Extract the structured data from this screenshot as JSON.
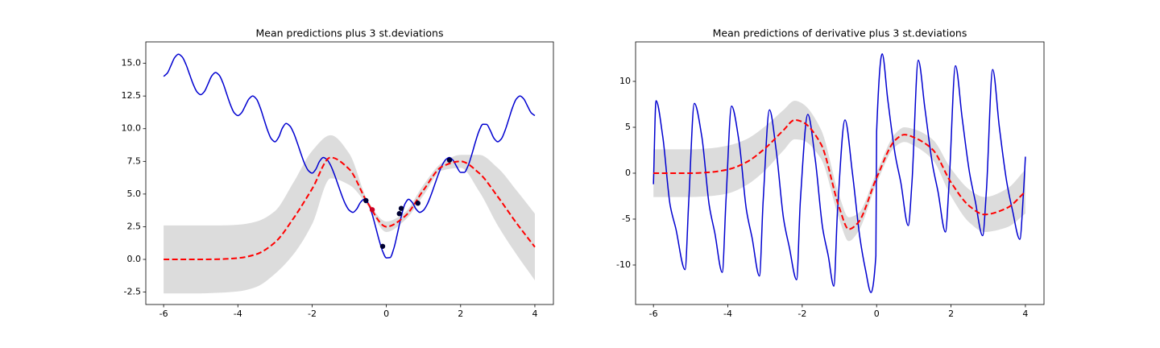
{
  "chart_data": [
    {
      "type": "line",
      "title": "Mean predictions plus 3 st.deviations",
      "xlim": [
        -6.48,
        4.5
      ],
      "ylim": [
        -3.45,
        16.64
      ],
      "xticks": [
        -6,
        -4,
        -2,
        0,
        2,
        4
      ],
      "yticks": [
        -2.5,
        {
          "value": 0,
          "label": "0.0"
        },
        2.5,
        {
          "value": 5,
          "label": "5.0"
        },
        7.5,
        {
          "value": 10,
          "label": "10.0"
        },
        12.5,
        {
          "value": 15,
          "label": "15.0"
        }
      ],
      "band": {
        "color": "#dcdcdc",
        "x": [
          -6,
          -5.5,
          -5,
          -4.5,
          -4,
          -3.5,
          -3,
          -2.5,
          -2,
          -1.5,
          -1,
          -0.5,
          0,
          0.5,
          1,
          1.5,
          2,
          2.5,
          3,
          3.5,
          4
        ],
        "lower": [
          -2.6,
          -2.6,
          -2.6,
          -2.55,
          -2.45,
          -2.1,
          -1.1,
          0.4,
          2.7,
          6.2,
          5.7,
          4.1,
          2.1,
          3.0,
          4.9,
          6.8,
          7.0,
          5.2,
          2.6,
          0.4,
          -1.6
        ],
        "upper": [
          2.6,
          2.6,
          2.6,
          2.6,
          2.65,
          2.9,
          3.7,
          5.9,
          8.3,
          9.5,
          8.1,
          4.5,
          2.9,
          3.6,
          5.7,
          7.4,
          8.0,
          8.0,
          7.0,
          5.3,
          3.5
        ]
      },
      "series": [
        {
          "color": "#0000d0",
          "x": [
            -6.0,
            -5.9,
            -5.8,
            -5.7,
            -5.6,
            -5.5,
            -5.4,
            -5.3,
            -5.2,
            -5.1,
            -5.0,
            -4.9,
            -4.8,
            -4.7,
            -4.6,
            -4.5,
            -4.4,
            -4.3,
            -4.2,
            -4.1,
            -4.0,
            -3.9,
            -3.8,
            -3.7,
            -3.6,
            -3.5,
            -3.4,
            -3.3,
            -3.2,
            -3.1,
            -3.0,
            -2.9,
            -2.8,
            -2.7,
            -2.6,
            -2.5,
            -2.4,
            -2.3,
            -2.2,
            -2.1,
            -2.0,
            -1.9,
            -1.8,
            -1.7,
            -1.6,
            -1.5,
            -1.4,
            -1.3,
            -1.2,
            -1.1,
            -1.0,
            -0.9,
            -0.8,
            -0.7,
            -0.6,
            -0.5,
            -0.4,
            -0.3,
            -0.2,
            -0.1,
            0.0,
            0.1,
            0.2,
            0.3,
            0.4,
            0.5,
            0.6,
            0.7,
            0.8,
            0.9,
            1.0,
            1.1,
            1.2,
            1.3,
            1.4,
            1.5,
            1.6,
            1.7,
            1.8,
            1.9,
            2.0,
            2.1,
            2.2,
            2.3,
            2.4,
            2.5,
            2.6,
            2.7,
            2.8,
            2.9,
            3.0,
            3.1,
            3.2,
            3.3,
            3.4,
            3.5,
            3.6,
            3.7,
            3.8,
            3.9,
            4.0
          ],
          "values": [
            14.0,
            14.25,
            14.85,
            15.45,
            15.7,
            15.49,
            14.93,
            14.15,
            13.38,
            12.81,
            12.6,
            12.85,
            13.45,
            14.05,
            14.3,
            14.08,
            13.48,
            12.65,
            11.83,
            11.22,
            11.0,
            11.22,
            11.75,
            12.28,
            12.5,
            12.27,
            11.63,
            10.75,
            9.88,
            9.23,
            9.0,
            9.35,
            10.05,
            10.4,
            10.21,
            9.69,
            8.92,
            8.08,
            7.31,
            6.79,
            6.6,
            6.9,
            7.5,
            7.8,
            7.64,
            7.19,
            6.5,
            5.7,
            4.9,
            4.21,
            3.76,
            3.6,
            3.85,
            4.35,
            4.6,
            4.34,
            3.62,
            2.6,
            1.52,
            0.62,
            0.12,
            0.14,
            0.83,
            2.01,
            3.27,
            4.24,
            4.6,
            4.35,
            3.85,
            3.6,
            3.76,
            4.21,
            4.9,
            5.7,
            6.5,
            7.19,
            7.64,
            7.8,
            7.57,
            7.07,
            6.66,
            6.66,
            7.15,
            8.01,
            8.99,
            9.85,
            10.34,
            10.33,
            9.86,
            9.26,
            9.0,
            9.23,
            9.88,
            10.75,
            11.63,
            12.27,
            12.5,
            12.28,
            11.75,
            11.22,
            11.0
          ]
        },
        {
          "color": "#ff0000",
          "dashed": true,
          "x": [
            -6,
            -5.5,
            -5,
            -4.5,
            -4,
            -3.5,
            -3,
            -2.5,
            -2,
            -1.5,
            -1,
            -0.5,
            0,
            0.5,
            1,
            1.5,
            2,
            2.5,
            3,
            3.5,
            4
          ],
          "values": [
            0,
            0,
            0,
            0.02,
            0.1,
            0.4,
            1.3,
            3.15,
            5.4,
            7.8,
            6.9,
            4.3,
            2.5,
            3.3,
            5.3,
            7.1,
            7.5,
            6.6,
            4.8,
            2.8,
            0.95
          ]
        }
      ],
      "points": [
        {
          "color": "#000033",
          "x": [
            -0.55,
            -0.1,
            0.35,
            0.4,
            0.85,
            1.7
          ],
          "values": [
            4.5,
            1.0,
            3.5,
            3.9,
            4.3,
            7.6
          ]
        },
        {
          "color": "#cc0022",
          "x": [
            -0.38
          ],
          "values": [
            3.8
          ]
        }
      ]
    },
    {
      "type": "line",
      "title": "Mean predictions of derivative plus 3 st.deviations",
      "xlim": [
        -6.48,
        4.5
      ],
      "ylim": [
        -14.3,
        14.3
      ],
      "xticks": [
        -6,
        -4,
        -2,
        0,
        2,
        4
      ],
      "yticks": [
        -10,
        -5,
        0,
        5,
        10
      ],
      "band": {
        "color": "#dcdcdc",
        "x": [
          -6,
          -5,
          -4.5,
          -4,
          -3.5,
          -3,
          -2.5,
          -2.2,
          -2,
          -1.5,
          -1,
          -0.75,
          -0.5,
          0,
          0.5,
          0.75,
          1,
          1.5,
          2,
          2.5,
          2.9,
          3.5,
          4
        ],
        "lower": [
          -2.6,
          -2.6,
          -2.5,
          -2.2,
          -1.3,
          0.3,
          2.5,
          3.7,
          3.6,
          1.6,
          -5.1,
          -7.4,
          -6.4,
          -1.1,
          2.9,
          3.4,
          3.0,
          1.5,
          -2.5,
          -5.4,
          -6.4,
          -5.9,
          -4.4
        ],
        "upper": [
          2.6,
          2.6,
          2.7,
          3.0,
          3.7,
          5.1,
          6.9,
          7.9,
          7.6,
          4.8,
          -2.5,
          -4.8,
          -4.4,
          0.1,
          4.3,
          5.0,
          4.8,
          3.7,
          0.5,
          -1.8,
          -2.6,
          -1.7,
          0.4
        ]
      },
      "series": [
        {
          "color": "#0000d0",
          "x": [
            -6.0,
            -5.93,
            -5.75,
            -5.55,
            -5.4,
            -5.15,
            -5.05,
            -4.9,
            -4.7,
            -4.5,
            -4.35,
            -4.15,
            -4.05,
            -3.9,
            -3.7,
            -3.5,
            -3.35,
            -3.15,
            -3.05,
            -2.88,
            -2.7,
            -2.5,
            -2.35,
            -2.15,
            -2.05,
            -1.85,
            -1.65,
            -1.45,
            -1.3,
            -1.15,
            -1.05,
            -0.85,
            -0.65,
            -0.45,
            -0.3,
            -0.15,
            -0.02,
            0.0,
            0.15,
            0.3,
            0.5,
            0.65,
            0.85,
            0.95,
            1.12,
            1.3,
            1.5,
            1.65,
            1.85,
            1.95,
            2.12,
            2.3,
            2.5,
            2.65,
            2.85,
            2.95,
            3.12,
            3.3,
            3.5,
            3.65,
            3.85,
            3.95,
            4.0
          ],
          "values": [
            -1.2,
            7.9,
            4.0,
            -3.5,
            -6.0,
            -10.5,
            -3,
            7.6,
            4.0,
            -3.5,
            -6.5,
            -10.8,
            -3,
            7.3,
            3.5,
            -4,
            -7,
            -11.2,
            -3,
            6.9,
            2.5,
            -5,
            -8,
            -11.6,
            -3,
            6.4,
            1.5,
            -6,
            -9,
            -12.3,
            -4,
            5.8,
            0,
            -7,
            -10.5,
            -13.0,
            -9,
            4.5,
            13.0,
            8,
            2,
            -1,
            -5.7,
            -1,
            12.3,
            7,
            1,
            -2,
            -6.4,
            -1,
            11.7,
            6,
            0,
            -3,
            -6.8,
            -2,
            11.3,
            5,
            -1,
            -4,
            -7.2,
            -2,
            1.8
          ]
        },
        {
          "color": "#ff0000",
          "dashed": true,
          "x": [
            -6,
            -5,
            -4.5,
            -4,
            -3.5,
            -3,
            -2.5,
            -2.2,
            -2,
            -1.5,
            -1,
            -0.75,
            -0.5,
            0,
            0.5,
            0.75,
            1,
            1.5,
            2,
            2.5,
            2.9,
            3.5,
            4
          ],
          "values": [
            0,
            0,
            0.1,
            0.4,
            1.2,
            2.7,
            4.7,
            5.8,
            5.6,
            3.2,
            -3.8,
            -6.1,
            -5.4,
            -0.5,
            3.6,
            4.2,
            3.9,
            2.6,
            -1.0,
            -3.6,
            -4.5,
            -3.8,
            -2.0
          ]
        }
      ]
    }
  ]
}
